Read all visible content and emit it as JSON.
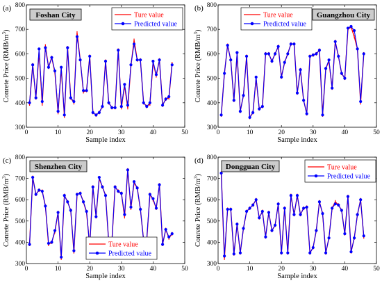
{
  "chart_data": [
    {
      "type": "line",
      "panel": "(a)",
      "city": "Foshan City",
      "xlabel": "Sample index",
      "ylabel": "Conrete Price (RMB/m3)",
      "xlim": [
        0,
        50
      ],
      "ylim": [
        300,
        800
      ],
      "xticks": [
        0,
        10,
        20,
        30,
        40,
        50
      ],
      "yticks": [
        300,
        400,
        500,
        600,
        700,
        800
      ],
      "legend": [
        "Ture value",
        "Predicted value"
      ],
      "legend_position": "top-right",
      "colors": {
        "true": "#ff0000",
        "predicted": "#0000ff"
      },
      "series": [
        {
          "name": "Ture value",
          "x": [
            1,
            2,
            3,
            4,
            5,
            6,
            7,
            8,
            9,
            10,
            11,
            12,
            13,
            14,
            15,
            16,
            17,
            18,
            19,
            20,
            21,
            22,
            23,
            24,
            25,
            26,
            27,
            28,
            29,
            30,
            31,
            32,
            33,
            34,
            35,
            36,
            37,
            38,
            39,
            40,
            41,
            42,
            43,
            44,
            45,
            46
          ],
          "values": [
            395,
            555,
            420,
            610,
            395,
            632,
            545,
            585,
            525,
            360,
            540,
            345,
            625,
            420,
            400,
            685,
            575,
            445,
            450,
            590,
            360,
            350,
            360,
            385,
            570,
            400,
            380,
            380,
            615,
            380,
            470,
            380,
            550,
            655,
            575,
            575,
            400,
            385,
            395,
            565,
            510,
            575,
            390,
            415,
            420,
            560
          ]
        },
        {
          "name": "Predicted value",
          "x": [
            1,
            2,
            3,
            4,
            5,
            6,
            7,
            8,
            9,
            10,
            11,
            12,
            13,
            14,
            15,
            16,
            17,
            18,
            19,
            20,
            21,
            22,
            23,
            24,
            25,
            26,
            27,
            28,
            29,
            30,
            31,
            32,
            33,
            34,
            35,
            36,
            37,
            38,
            39,
            40,
            41,
            42,
            43,
            44,
            45,
            46
          ],
          "values": [
            400,
            555,
            420,
            620,
            405,
            625,
            545,
            585,
            530,
            365,
            545,
            350,
            625,
            420,
            405,
            670,
            575,
            450,
            450,
            590,
            360,
            350,
            360,
            385,
            570,
            400,
            380,
            380,
            615,
            385,
            475,
            390,
            555,
            640,
            575,
            575,
            400,
            385,
            400,
            570,
            515,
            575,
            390,
            415,
            425,
            555
          ]
        }
      ]
    },
    {
      "type": "line",
      "panel": "(b)",
      "city": "Guangzhou City",
      "xlabel": "Sample index",
      "ylabel": "Conrete Price (RMB/m3)",
      "xlim": [
        0,
        50
      ],
      "ylim": [
        300,
        800
      ],
      "xticks": [
        0,
        10,
        20,
        30,
        40,
        50
      ],
      "yticks": [
        300,
        400,
        500,
        600,
        700,
        800
      ],
      "legend": [
        "Ture value",
        "Predicted value"
      ],
      "legend_position": "top-left",
      "colors": {
        "true": "#ff0000",
        "predicted": "#0000ff"
      },
      "series": [
        {
          "name": "Ture value",
          "x": [
            1,
            2,
            3,
            4,
            5,
            6,
            7,
            8,
            9,
            10,
            11,
            12,
            13,
            14,
            15,
            16,
            17,
            18,
            19,
            20,
            21,
            22,
            23,
            24,
            25,
            26,
            27,
            28,
            29,
            30,
            31,
            32,
            33,
            34,
            35,
            36,
            37,
            38,
            39,
            40,
            41,
            42,
            43,
            44,
            45,
            46
          ],
          "values": [
            350,
            520,
            635,
            575,
            410,
            600,
            365,
            430,
            590,
            340,
            360,
            500,
            375,
            385,
            600,
            600,
            570,
            600,
            630,
            505,
            565,
            600,
            640,
            640,
            440,
            535,
            410,
            355,
            590,
            595,
            600,
            615,
            350,
            540,
            570,
            460,
            650,
            590,
            520,
            500,
            700,
            710,
            670,
            620,
            400,
            600
          ]
        },
        {
          "name": "Predicted value",
          "x": [
            1,
            2,
            3,
            4,
            5,
            6,
            7,
            8,
            9,
            10,
            11,
            12,
            13,
            14,
            15,
            16,
            17,
            18,
            19,
            20,
            21,
            22,
            23,
            24,
            25,
            26,
            27,
            28,
            29,
            30,
            31,
            32,
            33,
            34,
            35,
            36,
            37,
            38,
            39,
            40,
            41,
            42,
            43,
            44,
            45,
            46
          ],
          "values": [
            350,
            520,
            635,
            575,
            410,
            605,
            365,
            430,
            590,
            340,
            360,
            505,
            375,
            385,
            600,
            600,
            570,
            600,
            630,
            505,
            565,
            600,
            640,
            640,
            440,
            535,
            410,
            355,
            590,
            595,
            600,
            615,
            350,
            540,
            575,
            460,
            650,
            590,
            520,
            500,
            705,
            712,
            695,
            620,
            405,
            600
          ]
        }
      ]
    },
    {
      "type": "line",
      "panel": "(c)",
      "city": "Shenzhen City",
      "xlabel": "Sample index",
      "ylabel": "Conrete Price (RMB/m3)",
      "xlim": [
        0,
        50
      ],
      "ylim": [
        300,
        800
      ],
      "xticks": [
        0,
        10,
        20,
        30,
        40,
        50
      ],
      "yticks": [
        300,
        400,
        500,
        600,
        700,
        800
      ],
      "legend": [
        "Ture value",
        "Predicted value"
      ],
      "legend_position": "bottom-center",
      "colors": {
        "true": "#ff0000",
        "predicted": "#0000ff"
      },
      "series": [
        {
          "name": "Ture value",
          "x": [
            1,
            2,
            3,
            4,
            5,
            6,
            7,
            8,
            9,
            10,
            11,
            12,
            13,
            14,
            15,
            16,
            17,
            18,
            19,
            20,
            21,
            22,
            23,
            24,
            25,
            26,
            27,
            28,
            29,
            30,
            31,
            32,
            33,
            34,
            35,
            36,
            37,
            38,
            39,
            40,
            41,
            42,
            43,
            44,
            45,
            46
          ],
          "values": [
            390,
            705,
            625,
            645,
            640,
            570,
            390,
            400,
            450,
            540,
            325,
            620,
            590,
            550,
            355,
            625,
            630,
            590,
            540,
            380,
            660,
            520,
            700,
            660,
            620,
            400,
            405,
            660,
            640,
            630,
            520,
            740,
            560,
            680,
            655,
            555,
            410,
            410,
            625,
            600,
            560,
            670,
            390,
            460,
            420,
            440
          ]
        },
        {
          "name": "Predicted value",
          "x": [
            1,
            2,
            3,
            4,
            5,
            6,
            7,
            8,
            9,
            10,
            11,
            12,
            13,
            14,
            15,
            16,
            17,
            18,
            19,
            20,
            21,
            22,
            23,
            24,
            25,
            26,
            27,
            28,
            29,
            30,
            31,
            32,
            33,
            34,
            35,
            36,
            37,
            38,
            39,
            40,
            41,
            42,
            43,
            44,
            45,
            46
          ],
          "values": [
            390,
            705,
            625,
            645,
            640,
            570,
            395,
            400,
            455,
            540,
            330,
            620,
            590,
            550,
            360,
            625,
            630,
            590,
            545,
            380,
            660,
            520,
            705,
            660,
            620,
            400,
            405,
            660,
            640,
            630,
            530,
            740,
            565,
            685,
            655,
            555,
            410,
            415,
            625,
            605,
            560,
            670,
            390,
            460,
            425,
            440
          ]
        }
      ]
    },
    {
      "type": "line",
      "panel": "(d)",
      "city": "Dongguan City",
      "xlabel": "Sample index",
      "ylabel": "Conrete Price (RMB/m3)",
      "xlim": [
        0,
        50
      ],
      "ylim": [
        300,
        800
      ],
      "xticks": [
        0,
        10,
        20,
        30,
        40,
        50
      ],
      "yticks": [
        300,
        400,
        500,
        600,
        700,
        800
      ],
      "legend": [
        "Ture value",
        "Predicted value"
      ],
      "legend_position": "top-right",
      "colors": {
        "true": "#ff0000",
        "predicted": "#0000ff"
      },
      "series": [
        {
          "name": "Ture value",
          "x": [
            1,
            2,
            3,
            4,
            5,
            6,
            7,
            8,
            9,
            10,
            11,
            12,
            13,
            14,
            15,
            16,
            17,
            18,
            19,
            20,
            21,
            22,
            23,
            24,
            25,
            26,
            27,
            28,
            29,
            30,
            31,
            32,
            33,
            34,
            35,
            36,
            37,
            38,
            39,
            40,
            41,
            42,
            43,
            44,
            45,
            46
          ],
          "values": [
            725,
            325,
            555,
            555,
            345,
            485,
            350,
            465,
            545,
            560,
            575,
            600,
            515,
            545,
            425,
            540,
            455,
            480,
            580,
            350,
            560,
            350,
            620,
            530,
            620,
            530,
            560,
            565,
            350,
            375,
            455,
            590,
            535,
            350,
            420,
            560,
            590,
            575,
            550,
            440,
            615,
            355,
            420,
            530,
            600,
            425
          ]
        },
        {
          "name": "Predicted value",
          "x": [
            1,
            2,
            3,
            4,
            5,
            6,
            7,
            8,
            9,
            10,
            11,
            12,
            13,
            14,
            15,
            16,
            17,
            18,
            19,
            20,
            21,
            22,
            23,
            24,
            25,
            26,
            27,
            28,
            29,
            30,
            31,
            32,
            33,
            34,
            35,
            36,
            37,
            38,
            39,
            40,
            41,
            42,
            43,
            44,
            45,
            46
          ],
          "values": [
            725,
            335,
            555,
            555,
            345,
            485,
            350,
            465,
            545,
            560,
            575,
            600,
            515,
            545,
            425,
            540,
            455,
            480,
            580,
            350,
            560,
            350,
            620,
            530,
            620,
            530,
            560,
            565,
            350,
            375,
            455,
            590,
            535,
            350,
            420,
            560,
            580,
            575,
            550,
            440,
            615,
            355,
            420,
            530,
            600,
            430
          ]
        }
      ]
    }
  ]
}
